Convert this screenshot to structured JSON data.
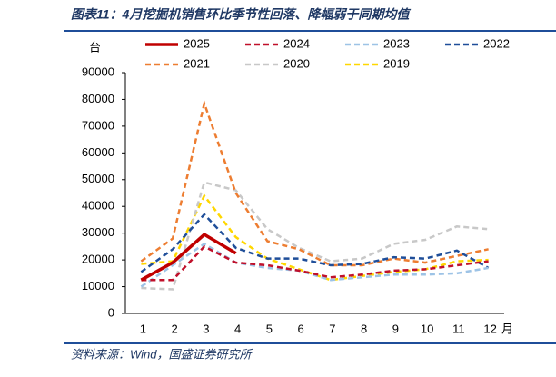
{
  "chart_data": {
    "type": "line",
    "title": "图表11：4月挖掘机销售环比季节性回落、降幅弱于同期均值",
    "source": "资料来源：Wind，国盛证券研究所",
    "y_unit": "台",
    "x_unit": "月",
    "categories": [
      "1",
      "2",
      "3",
      "4",
      "5",
      "6",
      "7",
      "8",
      "9",
      "10",
      "11",
      "12"
    ],
    "ylim": [
      0,
      90000
    ],
    "yticks": [
      0,
      10000,
      20000,
      30000,
      40000,
      50000,
      60000,
      70000,
      80000,
      90000
    ],
    "grid": false,
    "series": [
      {
        "name": "2025",
        "color": "#c00000",
        "style": "solid",
        "values": [
          12500,
          19000,
          29500,
          22500,
          null,
          null,
          null,
          null,
          null,
          null,
          null,
          null
        ]
      },
      {
        "name": "2024",
        "color": "#c0102a",
        "style": "dashed",
        "values": [
          12500,
          12500,
          25000,
          19000,
          18000,
          16000,
          13500,
          14500,
          16000,
          16500,
          18000,
          19500
        ]
      },
      {
        "name": "2023",
        "color": "#9dc3e6",
        "style": "dashed",
        "values": [
          10000,
          18000,
          26000,
          19000,
          17000,
          16000,
          12500,
          13500,
          14500,
          14500,
          15000,
          17000
        ]
      },
      {
        "name": "2022",
        "color": "#1f4e99",
        "style": "dashed",
        "values": [
          15500,
          24000,
          37000,
          24500,
          20500,
          20500,
          18000,
          18500,
          21000,
          20500,
          23500,
          17000
        ]
      },
      {
        "name": "2021",
        "color": "#ed7d31",
        "style": "dashed",
        "values": [
          19500,
          28000,
          78500,
          45000,
          27000,
          24000,
          18000,
          18000,
          20500,
          19000,
          21500,
          24000
        ]
      },
      {
        "name": "2020",
        "color": "#c8c8c8",
        "style": "dashed",
        "values": [
          9500,
          9000,
          49000,
          46000,
          31500,
          24500,
          19500,
          20500,
          26000,
          27500,
          32500,
          31500
        ]
      },
      {
        "name": "2019",
        "color": "#ffd700",
        "style": "dashed",
        "values": [
          18500,
          19500,
          44000,
          28500,
          20500,
          16500,
          12500,
          14000,
          15500,
          16500,
          19500,
          20000
        ]
      }
    ]
  }
}
